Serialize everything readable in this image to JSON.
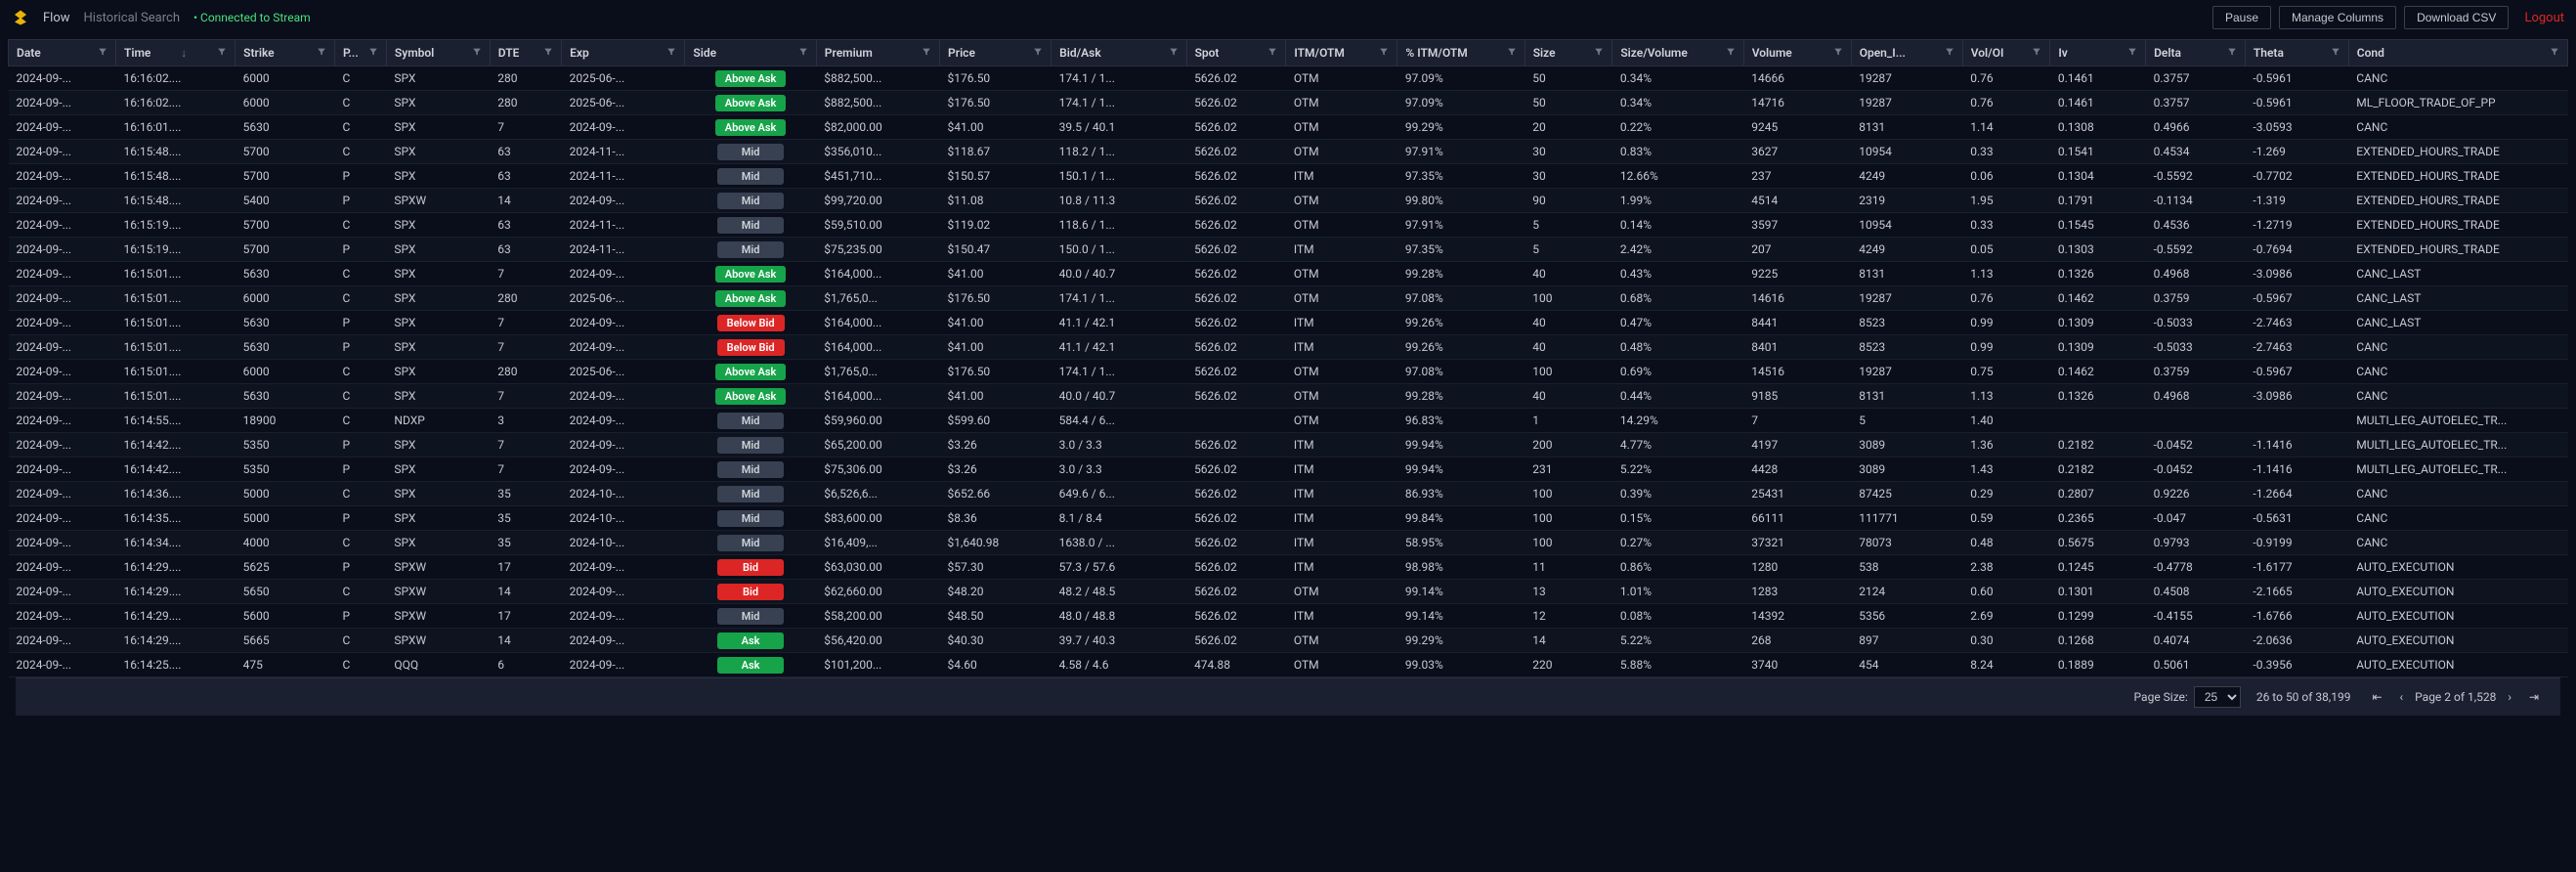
{
  "nav": {
    "flow": "Flow",
    "historical": "Historical Search",
    "status": "Connected to Stream",
    "pause": "Pause",
    "manage_columns": "Manage Columns",
    "download_csv": "Download CSV",
    "logout": "Logout"
  },
  "columns": [
    {
      "key": "date",
      "label": "Date",
      "w": 54
    },
    {
      "key": "time",
      "label": "Time",
      "w": 60,
      "sort": "desc"
    },
    {
      "key": "strike",
      "label": "Strike",
      "w": 50
    },
    {
      "key": "pc",
      "label": "P...",
      "w": 26
    },
    {
      "key": "symbol",
      "label": "Symbol",
      "w": 52
    },
    {
      "key": "dte",
      "label": "DTE",
      "w": 36
    },
    {
      "key": "exp",
      "label": "Exp",
      "w": 62
    },
    {
      "key": "side",
      "label": "Side",
      "w": 66
    },
    {
      "key": "premium",
      "label": "Premium",
      "w": 62
    },
    {
      "key": "price",
      "label": "Price",
      "w": 56
    },
    {
      "key": "bidask",
      "label": "Bid/Ask",
      "w": 68
    },
    {
      "key": "spot",
      "label": "Spot",
      "w": 50
    },
    {
      "key": "itmotm",
      "label": "ITM/OTM",
      "w": 56
    },
    {
      "key": "pct",
      "label": "% ITM/OTM",
      "w": 64
    },
    {
      "key": "size",
      "label": "Size",
      "w": 44
    },
    {
      "key": "sv",
      "label": "Size/Volume",
      "w": 66
    },
    {
      "key": "volume",
      "label": "Volume",
      "w": 54
    },
    {
      "key": "oi",
      "label": "Open_I...",
      "w": 56
    },
    {
      "key": "voloi",
      "label": "Vol/OI",
      "w": 44
    },
    {
      "key": "iv",
      "label": "Iv",
      "w": 48
    },
    {
      "key": "delta",
      "label": "Delta",
      "w": 50
    },
    {
      "key": "theta",
      "label": "Theta",
      "w": 52
    },
    {
      "key": "cond",
      "label": "Cond",
      "w": 110
    }
  ],
  "side_styles": {
    "Above Ask": "side-above-ask",
    "Ask": "side-ask",
    "Mid": "side-mid",
    "Below Bid": "side-below-bid",
    "Bid": "side-bid"
  },
  "rows": [
    {
      "date": "2024-09-...",
      "time": "16:16:02....",
      "strike": "6000",
      "pc": "C",
      "symbol": "SPX",
      "dte": "280",
      "exp": "2025-06-...",
      "side": "Above Ask",
      "premium": "$882,500...",
      "price": "$176.50",
      "bidask": "174.1 / 1...",
      "spot": "5626.02",
      "itmotm": "OTM",
      "pct": "97.09%",
      "size": "50",
      "sv": "0.34%",
      "volume": "14666",
      "oi": "19287",
      "voloi": "0.76",
      "iv": "0.1461",
      "delta": "0.3757",
      "theta": "-0.5961",
      "cond": "CANC"
    },
    {
      "date": "2024-09-...",
      "time": "16:16:02....",
      "strike": "6000",
      "pc": "C",
      "symbol": "SPX",
      "dte": "280",
      "exp": "2025-06-...",
      "side": "Above Ask",
      "premium": "$882,500...",
      "price": "$176.50",
      "bidask": "174.1 / 1...",
      "spot": "5626.02",
      "itmotm": "OTM",
      "pct": "97.09%",
      "size": "50",
      "sv": "0.34%",
      "volume": "14716",
      "oi": "19287",
      "voloi": "0.76",
      "iv": "0.1461",
      "delta": "0.3757",
      "theta": "-0.5961",
      "cond": "ML_FLOOR_TRADE_OF_PP"
    },
    {
      "date": "2024-09-...",
      "time": "16:16:01....",
      "strike": "5630",
      "pc": "C",
      "symbol": "SPX",
      "dte": "7",
      "exp": "2024-09-...",
      "side": "Above Ask",
      "premium": "$82,000.00",
      "price": "$41.00",
      "bidask": "39.5 / 40.1",
      "spot": "5626.02",
      "itmotm": "OTM",
      "pct": "99.29%",
      "size": "20",
      "sv": "0.22%",
      "volume": "9245",
      "oi": "8131",
      "voloi": "1.14",
      "iv": "0.1308",
      "delta": "0.4966",
      "theta": "-3.0593",
      "cond": "CANC"
    },
    {
      "date": "2024-09-...",
      "time": "16:15:48....",
      "strike": "5700",
      "pc": "C",
      "symbol": "SPX",
      "dte": "63",
      "exp": "2024-11-...",
      "side": "Mid",
      "premium": "$356,010...",
      "price": "$118.67",
      "bidask": "118.2 / 1...",
      "spot": "5626.02",
      "itmotm": "OTM",
      "pct": "97.91%",
      "size": "30",
      "sv": "0.83%",
      "volume": "3627",
      "oi": "10954",
      "voloi": "0.33",
      "iv": "0.1541",
      "delta": "0.4534",
      "theta": "-1.269",
      "cond": "EXTENDED_HOURS_TRADE"
    },
    {
      "date": "2024-09-...",
      "time": "16:15:48....",
      "strike": "5700",
      "pc": "P",
      "symbol": "SPX",
      "dte": "63",
      "exp": "2024-11-...",
      "side": "Mid",
      "premium": "$451,710...",
      "price": "$150.57",
      "bidask": "150.1 / 1...",
      "spot": "5626.02",
      "itmotm": "ITM",
      "pct": "97.35%",
      "size": "30",
      "sv": "12.66%",
      "volume": "237",
      "oi": "4249",
      "voloi": "0.06",
      "iv": "0.1304",
      "delta": "-0.5592",
      "theta": "-0.7702",
      "cond": "EXTENDED_HOURS_TRADE"
    },
    {
      "date": "2024-09-...",
      "time": "16:15:48....",
      "strike": "5400",
      "pc": "P",
      "symbol": "SPXW",
      "dte": "14",
      "exp": "2024-09-...",
      "side": "Mid",
      "premium": "$99,720.00",
      "price": "$11.08",
      "bidask": "10.8 / 11.3",
      "spot": "5626.02",
      "itmotm": "OTM",
      "pct": "99.80%",
      "size": "90",
      "sv": "1.99%",
      "volume": "4514",
      "oi": "2319",
      "voloi": "1.95",
      "iv": "0.1791",
      "delta": "-0.1134",
      "theta": "-1.319",
      "cond": "EXTENDED_HOURS_TRADE"
    },
    {
      "date": "2024-09-...",
      "time": "16:15:19....",
      "strike": "5700",
      "pc": "C",
      "symbol": "SPX",
      "dte": "63",
      "exp": "2024-11-...",
      "side": "Mid",
      "premium": "$59,510.00",
      "price": "$119.02",
      "bidask": "118.6 / 1...",
      "spot": "5626.02",
      "itmotm": "OTM",
      "pct": "97.91%",
      "size": "5",
      "sv": "0.14%",
      "volume": "3597",
      "oi": "10954",
      "voloi": "0.33",
      "iv": "0.1545",
      "delta": "0.4536",
      "theta": "-1.2719",
      "cond": "EXTENDED_HOURS_TRADE"
    },
    {
      "date": "2024-09-...",
      "time": "16:15:19....",
      "strike": "5700",
      "pc": "P",
      "symbol": "SPX",
      "dte": "63",
      "exp": "2024-11-...",
      "side": "Mid",
      "premium": "$75,235.00",
      "price": "$150.47",
      "bidask": "150.0 / 1...",
      "spot": "5626.02",
      "itmotm": "ITM",
      "pct": "97.35%",
      "size": "5",
      "sv": "2.42%",
      "volume": "207",
      "oi": "4249",
      "voloi": "0.05",
      "iv": "0.1303",
      "delta": "-0.5592",
      "theta": "-0.7694",
      "cond": "EXTENDED_HOURS_TRADE"
    },
    {
      "date": "2024-09-...",
      "time": "16:15:01....",
      "strike": "5630",
      "pc": "C",
      "symbol": "SPX",
      "dte": "7",
      "exp": "2024-09-...",
      "side": "Above Ask",
      "premium": "$164,000...",
      "price": "$41.00",
      "bidask": "40.0 / 40.7",
      "spot": "5626.02",
      "itmotm": "OTM",
      "pct": "99.28%",
      "size": "40",
      "sv": "0.43%",
      "volume": "9225",
      "oi": "8131",
      "voloi": "1.13",
      "iv": "0.1326",
      "delta": "0.4968",
      "theta": "-3.0986",
      "cond": "CANC_LAST"
    },
    {
      "date": "2024-09-...",
      "time": "16:15:01....",
      "strike": "6000",
      "pc": "C",
      "symbol": "SPX",
      "dte": "280",
      "exp": "2025-06-...",
      "side": "Above Ask",
      "premium": "$1,765,0...",
      "price": "$176.50",
      "bidask": "174.1 / 1...",
      "spot": "5626.02",
      "itmotm": "OTM",
      "pct": "97.08%",
      "size": "100",
      "sv": "0.68%",
      "volume": "14616",
      "oi": "19287",
      "voloi": "0.76",
      "iv": "0.1462",
      "delta": "0.3759",
      "theta": "-0.5967",
      "cond": "CANC_LAST"
    },
    {
      "date": "2024-09-...",
      "time": "16:15:01....",
      "strike": "5630",
      "pc": "P",
      "symbol": "SPX",
      "dte": "7",
      "exp": "2024-09-...",
      "side": "Below Bid",
      "premium": "$164,000...",
      "price": "$41.00",
      "bidask": "41.1 / 42.1",
      "spot": "5626.02",
      "itmotm": "ITM",
      "pct": "99.26%",
      "size": "40",
      "sv": "0.47%",
      "volume": "8441",
      "oi": "8523",
      "voloi": "0.99",
      "iv": "0.1309",
      "delta": "-0.5033",
      "theta": "-2.7463",
      "cond": "CANC_LAST"
    },
    {
      "date": "2024-09-...",
      "time": "16:15:01....",
      "strike": "5630",
      "pc": "P",
      "symbol": "SPX",
      "dte": "7",
      "exp": "2024-09-...",
      "side": "Below Bid",
      "premium": "$164,000...",
      "price": "$41.00",
      "bidask": "41.1 / 42.1",
      "spot": "5626.02",
      "itmotm": "ITM",
      "pct": "99.26%",
      "size": "40",
      "sv": "0.48%",
      "volume": "8401",
      "oi": "8523",
      "voloi": "0.99",
      "iv": "0.1309",
      "delta": "-0.5033",
      "theta": "-2.7463",
      "cond": "CANC"
    },
    {
      "date": "2024-09-...",
      "time": "16:15:01....",
      "strike": "6000",
      "pc": "C",
      "symbol": "SPX",
      "dte": "280",
      "exp": "2025-06-...",
      "side": "Above Ask",
      "premium": "$1,765,0...",
      "price": "$176.50",
      "bidask": "174.1 / 1...",
      "spot": "5626.02",
      "itmotm": "OTM",
      "pct": "97.08%",
      "size": "100",
      "sv": "0.69%",
      "volume": "14516",
      "oi": "19287",
      "voloi": "0.75",
      "iv": "0.1462",
      "delta": "0.3759",
      "theta": "-0.5967",
      "cond": "CANC"
    },
    {
      "date": "2024-09-...",
      "time": "16:15:01....",
      "strike": "5630",
      "pc": "C",
      "symbol": "SPX",
      "dte": "7",
      "exp": "2024-09-...",
      "side": "Above Ask",
      "premium": "$164,000...",
      "price": "$41.00",
      "bidask": "40.0 / 40.7",
      "spot": "5626.02",
      "itmotm": "OTM",
      "pct": "99.28%",
      "size": "40",
      "sv": "0.44%",
      "volume": "9185",
      "oi": "8131",
      "voloi": "1.13",
      "iv": "0.1326",
      "delta": "0.4968",
      "theta": "-3.0986",
      "cond": "CANC"
    },
    {
      "date": "2024-09-...",
      "time": "16:14:55....",
      "strike": "18900",
      "pc": "C",
      "symbol": "NDXP",
      "dte": "3",
      "exp": "2024-09-...",
      "side": "Mid",
      "premium": "$59,960.00",
      "price": "$599.60",
      "bidask": "584.4 / 6...",
      "spot": "",
      "itmotm": "OTM",
      "pct": "96.83%",
      "size": "1",
      "sv": "14.29%",
      "volume": "7",
      "oi": "5",
      "voloi": "1.40",
      "iv": "",
      "delta": "",
      "theta": "",
      "cond": "MULTI_LEG_AUTOELEC_TR..."
    },
    {
      "date": "2024-09-...",
      "time": "16:14:42....",
      "strike": "5350",
      "pc": "P",
      "symbol": "SPX",
      "dte": "7",
      "exp": "2024-09-...",
      "side": "Mid",
      "premium": "$65,200.00",
      "price": "$3.26",
      "bidask": "3.0 / 3.3",
      "spot": "5626.02",
      "itmotm": "ITM",
      "pct": "99.94%",
      "size": "200",
      "sv": "4.77%",
      "volume": "4197",
      "oi": "3089",
      "voloi": "1.36",
      "iv": "0.2182",
      "delta": "-0.0452",
      "theta": "-1.1416",
      "cond": "MULTI_LEG_AUTOELEC_TR..."
    },
    {
      "date": "2024-09-...",
      "time": "16:14:42....",
      "strike": "5350",
      "pc": "P",
      "symbol": "SPX",
      "dte": "7",
      "exp": "2024-09-...",
      "side": "Mid",
      "premium": "$75,306.00",
      "price": "$3.26",
      "bidask": "3.0 / 3.3",
      "spot": "5626.02",
      "itmotm": "ITM",
      "pct": "99.94%",
      "size": "231",
      "sv": "5.22%",
      "volume": "4428",
      "oi": "3089",
      "voloi": "1.43",
      "iv": "0.2182",
      "delta": "-0.0452",
      "theta": "-1.1416",
      "cond": "MULTI_LEG_AUTOELEC_TR..."
    },
    {
      "date": "2024-09-...",
      "time": "16:14:36....",
      "strike": "5000",
      "pc": "C",
      "symbol": "SPX",
      "dte": "35",
      "exp": "2024-10-...",
      "side": "Mid",
      "premium": "$6,526,6...",
      "price": "$652.66",
      "bidask": "649.6 / 6...",
      "spot": "5626.02",
      "itmotm": "ITM",
      "pct": "86.93%",
      "size": "100",
      "sv": "0.39%",
      "volume": "25431",
      "oi": "87425",
      "voloi": "0.29",
      "iv": "0.2807",
      "delta": "0.9226",
      "theta": "-1.2664",
      "cond": "CANC"
    },
    {
      "date": "2024-09-...",
      "time": "16:14:35....",
      "strike": "5000",
      "pc": "P",
      "symbol": "SPX",
      "dte": "35",
      "exp": "2024-10-...",
      "side": "Mid",
      "premium": "$83,600.00",
      "price": "$8.36",
      "bidask": "8.1 / 8.4",
      "spot": "5626.02",
      "itmotm": "ITM",
      "pct": "99.84%",
      "size": "100",
      "sv": "0.15%",
      "volume": "66111",
      "oi": "111771",
      "voloi": "0.59",
      "iv": "0.2365",
      "delta": "-0.047",
      "theta": "-0.5631",
      "cond": "CANC"
    },
    {
      "date": "2024-09-...",
      "time": "16:14:34....",
      "strike": "4000",
      "pc": "C",
      "symbol": "SPX",
      "dte": "35",
      "exp": "2024-10-...",
      "side": "Mid",
      "premium": "$16,409,...",
      "price": "$1,640.98",
      "bidask": "1638.0 / ...",
      "spot": "5626.02",
      "itmotm": "ITM",
      "pct": "58.95%",
      "size": "100",
      "sv": "0.27%",
      "volume": "37321",
      "oi": "78073",
      "voloi": "0.48",
      "iv": "0.5675",
      "delta": "0.9793",
      "theta": "-0.9199",
      "cond": "CANC"
    },
    {
      "date": "2024-09-...",
      "time": "16:14:29....",
      "strike": "5625",
      "pc": "P",
      "symbol": "SPXW",
      "dte": "17",
      "exp": "2024-09-...",
      "side": "Bid",
      "premium": "$63,030.00",
      "price": "$57.30",
      "bidask": "57.3 / 57.6",
      "spot": "5626.02",
      "itmotm": "ITM",
      "pct": "98.98%",
      "size": "11",
      "sv": "0.86%",
      "volume": "1280",
      "oi": "538",
      "voloi": "2.38",
      "iv": "0.1245",
      "delta": "-0.4778",
      "theta": "-1.6177",
      "cond": "AUTO_EXECUTION"
    },
    {
      "date": "2024-09-...",
      "time": "16:14:29....",
      "strike": "5650",
      "pc": "C",
      "symbol": "SPXW",
      "dte": "14",
      "exp": "2024-09-...",
      "side": "Bid",
      "premium": "$62,660.00",
      "price": "$48.20",
      "bidask": "48.2 / 48.5",
      "spot": "5626.02",
      "itmotm": "OTM",
      "pct": "99.14%",
      "size": "13",
      "sv": "1.01%",
      "volume": "1283",
      "oi": "2124",
      "voloi": "0.60",
      "iv": "0.1301",
      "delta": "0.4508",
      "theta": "-2.1665",
      "cond": "AUTO_EXECUTION"
    },
    {
      "date": "2024-09-...",
      "time": "16:14:29....",
      "strike": "5600",
      "pc": "P",
      "symbol": "SPXW",
      "dte": "17",
      "exp": "2024-09-...",
      "side": "Mid",
      "premium": "$58,200.00",
      "price": "$48.50",
      "bidask": "48.0 / 48.8",
      "spot": "5626.02",
      "itmotm": "ITM",
      "pct": "99.14%",
      "size": "12",
      "sv": "0.08%",
      "volume": "14392",
      "oi": "5356",
      "voloi": "2.69",
      "iv": "0.1299",
      "delta": "-0.4155",
      "theta": "-1.6766",
      "cond": "AUTO_EXECUTION"
    },
    {
      "date": "2024-09-...",
      "time": "16:14:29....",
      "strike": "5665",
      "pc": "C",
      "symbol": "SPXW",
      "dte": "14",
      "exp": "2024-09-...",
      "side": "Ask",
      "premium": "$56,420.00",
      "price": "$40.30",
      "bidask": "39.7 / 40.3",
      "spot": "5626.02",
      "itmotm": "OTM",
      "pct": "99.29%",
      "size": "14",
      "sv": "5.22%",
      "volume": "268",
      "oi": "897",
      "voloi": "0.30",
      "iv": "0.1268",
      "delta": "0.4074",
      "theta": "-2.0636",
      "cond": "AUTO_EXECUTION"
    },
    {
      "date": "2024-09-...",
      "time": "16:14:25....",
      "strike": "475",
      "pc": "C",
      "symbol": "QQQ",
      "dte": "6",
      "exp": "2024-09-...",
      "side": "Ask",
      "premium": "$101,200...",
      "price": "$4.60",
      "bidask": "4.58 / 4.6",
      "spot": "474.88",
      "itmotm": "OTM",
      "pct": "99.03%",
      "size": "220",
      "sv": "5.88%",
      "volume": "3740",
      "oi": "454",
      "voloi": "8.24",
      "iv": "0.1889",
      "delta": "0.5061",
      "theta": "-0.3956",
      "cond": "AUTO_EXECUTION"
    }
  ],
  "footer": {
    "page_size_label": "Page Size:",
    "page_size": "25",
    "range": "26 to 50 of 38,199",
    "page": "Page 2 of 1,528"
  }
}
